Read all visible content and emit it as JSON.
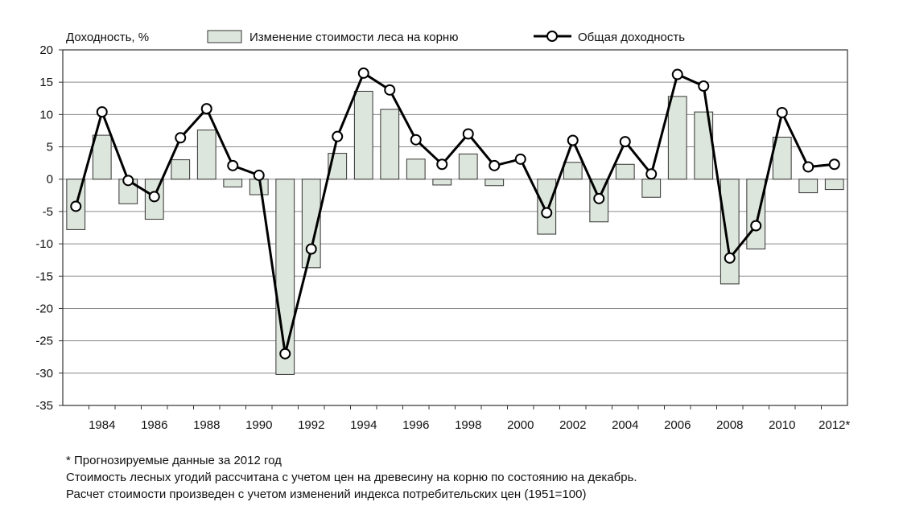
{
  "chart_data": {
    "type": "bar+line",
    "ylabel": "Доходность, %",
    "ylim": [
      -35,
      20
    ],
    "yticks": [
      20,
      15,
      10,
      5,
      0,
      -5,
      -10,
      -15,
      -20,
      -25,
      -30,
      -35
    ],
    "grid": true,
    "legend_position": "top",
    "x": [
      1983,
      1984,
      1985,
      1986,
      1987,
      1988,
      1989,
      1990,
      1991,
      1992,
      1993,
      1994,
      1995,
      1996,
      1997,
      1998,
      1999,
      2000,
      2001,
      2002,
      2003,
      2004,
      2005,
      2006,
      2007,
      2008,
      2009,
      2010,
      2011,
      2012
    ],
    "xtick_labels": [
      "1984",
      "1986",
      "1988",
      "1990",
      "1992",
      "1994",
      "1996",
      "1998",
      "2000",
      "2002",
      "2004",
      "2006",
      "2008",
      "2010",
      "2012*"
    ],
    "xtick_years": [
      1984,
      1986,
      1988,
      1990,
      1992,
      1994,
      1996,
      1998,
      2000,
      2002,
      2004,
      2006,
      2008,
      2010,
      2012
    ],
    "series": [
      {
        "name": "Изменение стоимости леса на корню",
        "kind": "bar",
        "color": "#dde6dc",
        "values": [
          -7.8,
          6.8,
          -3.8,
          -6.2,
          3.0,
          7.6,
          -1.2,
          -2.4,
          -30.2,
          -13.7,
          4.0,
          13.6,
          10.8,
          3.1,
          -0.9,
          3.9,
          -1.0,
          0.0,
          -8.5,
          2.6,
          -6.6,
          2.3,
          -2.8,
          12.8,
          10.4,
          -16.2,
          -10.8,
          6.5,
          -2.1,
          -1.6
        ]
      },
      {
        "name": "Общая доходность",
        "kind": "line",
        "color": "#000000",
        "values": [
          -4.2,
          10.4,
          -0.2,
          -2.7,
          6.4,
          10.9,
          2.1,
          0.6,
          -27.0,
          -10.8,
          6.6,
          16.4,
          13.8,
          6.1,
          2.3,
          7.0,
          2.1,
          3.1,
          -5.2,
          6.0,
          -3.0,
          5.8,
          0.8,
          16.2,
          14.4,
          -12.2,
          -7.2,
          10.3,
          1.9,
          2.3
        ]
      }
    ]
  },
  "notes": {
    "line1": "* Прогнозируемые данные за 2012 год",
    "line2": "Стоимость лесных угодий рассчитана с учетом цен на древесину на корню по состоянию на декабрь.",
    "line3": "Расчет стоимости произведен с учетом изменений индекса потребительских цен (1951=100)"
  }
}
